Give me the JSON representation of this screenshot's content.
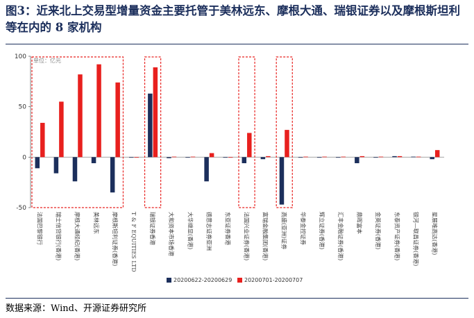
{
  "header": {
    "title": "图3：近来北上交易型增量资金主要托管于美林远东、摩根大通、瑞银证券以及摩根斯坦利等在内的 8 家机构"
  },
  "footer": {
    "source": "数据来源：Wind、开源证券研究所"
  },
  "chart_data": {
    "type": "bar",
    "unit_label": "单位：亿元",
    "ylim": [
      -50,
      100
    ],
    "yticks": [
      100,
      50,
      0,
      -50
    ],
    "categories": [
      "法国巴黎银行",
      "瑞士信贷银行(香港)",
      "摩根大通经纪(香港)",
      "美林远东",
      "摩根斯坦利证券(香港)",
      "T & F EQUITIES LTD",
      "瑞银证券香港",
      "大和资本市场香港",
      "大华继显(香港)",
      "德意志证券亚洲",
      "东亚证券香港",
      "法国兴业证券(香港)",
      "富瑞金融集团(香港)",
      "高盛(亚洲)证券",
      "华泰金控证券",
      "辉立证券(香港)",
      "汇丰金融证券(香港)",
      "鼎晖富本",
      "金英证券(香港)",
      "东泰资产证券(香港)",
      "银河—联昌证券(香港)",
      "星展唯高达(香港)"
    ],
    "series": [
      {
        "name": "20200622-20200629",
        "color": "#1c2f5c",
        "values": [
          -11,
          -16,
          -24,
          -6,
          -35,
          0,
          63,
          -1,
          0,
          -24,
          -0.5,
          -6,
          -2,
          -47,
          -0.5,
          -0.5,
          -0.5,
          -6,
          -0.5,
          1,
          0.5,
          -2
        ]
      },
      {
        "name": "20200701-20200707",
        "color": "#e8201e",
        "values": [
          34,
          55,
          82,
          92,
          74,
          0,
          89,
          0.5,
          0.5,
          4,
          -0.5,
          24,
          1,
          27,
          0.5,
          0.5,
          0.5,
          1,
          0.5,
          1,
          0.5,
          7
        ]
      }
    ],
    "highlight_groups": [
      [
        0,
        4
      ],
      [
        6,
        6
      ],
      [
        11,
        11
      ],
      [
        13,
        13
      ]
    ],
    "legend": "bottom"
  }
}
